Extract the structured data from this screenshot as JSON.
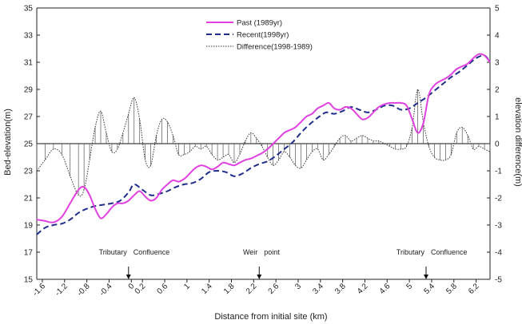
{
  "chart_data": {
    "type": "line",
    "title": "",
    "xlabel": "Distance from initial site (km)",
    "ylabel": "Bed-elevation(m)",
    "y2label": "elevation difference(m)",
    "xlim": [
      -1.7,
      6.45
    ],
    "ylim": [
      15,
      35
    ],
    "y2lim": [
      -5,
      5
    ],
    "x_ticks": [
      -1.6,
      -1.2,
      -0.8,
      -0.4,
      0,
      0.2,
      0.6,
      1,
      1.4,
      1.8,
      2.2,
      2.6,
      3,
      3.4,
      3.8,
      4.2,
      4.6,
      5,
      5.4,
      5.8,
      6.2
    ],
    "x_tick_labels": [
      "-1.6",
      "-1.2",
      "-0.8",
      "-0.4",
      "0",
      "0.2",
      "0.6",
      "1",
      "1.4",
      "1.8",
      "2.2",
      "2.6",
      "3",
      "3.4",
      "3.8",
      "4.2",
      "4.6",
      "5",
      "5.4",
      "5.8",
      "6.2"
    ],
    "y_ticks": [
      15,
      17,
      19,
      21,
      23,
      25,
      27,
      29,
      31,
      33,
      35
    ],
    "y2_ticks": [
      -5,
      -4,
      -3,
      -2,
      -1,
      0,
      1,
      2,
      3,
      4,
      5
    ],
    "grid": false,
    "legend_position": "top-center",
    "series": [
      {
        "name": "Past (1989yr)",
        "axis": "left",
        "color": "#e040e0",
        "style": "solid",
        "x": [
          -1.7,
          -1.55,
          -1.4,
          -1.25,
          -1.1,
          -0.95,
          -0.85,
          -0.75,
          -0.65,
          -0.55,
          -0.45,
          -0.35,
          -0.25,
          -0.15,
          -0.05,
          0.05,
          0.15,
          0.25,
          0.35,
          0.45,
          0.55,
          0.65,
          0.75,
          0.85,
          0.95,
          1.05,
          1.15,
          1.25,
          1.35,
          1.45,
          1.55,
          1.65,
          1.75,
          1.85,
          1.95,
          2.05,
          2.15,
          2.25,
          2.35,
          2.45,
          2.55,
          2.65,
          2.75,
          2.85,
          2.95,
          3.05,
          3.15,
          3.25,
          3.35,
          3.45,
          3.55,
          3.65,
          3.75,
          3.85,
          3.95,
          4.05,
          4.15,
          4.25,
          4.35,
          4.45,
          4.55,
          4.65,
          4.75,
          4.85,
          4.95,
          5.05,
          5.15,
          5.25,
          5.35,
          5.45,
          5.55,
          5.65,
          5.75,
          5.85,
          5.95,
          6.05,
          6.15,
          6.25,
          6.35,
          6.45
        ],
        "values": [
          19.4,
          19.3,
          19.2,
          19.6,
          20.6,
          21.6,
          21.8,
          21.2,
          20.2,
          19.5,
          19.8,
          20.3,
          20.6,
          20.6,
          20.8,
          21.2,
          21.5,
          21.1,
          20.8,
          21.0,
          21.6,
          22.0,
          22.3,
          22.2,
          22.4,
          22.8,
          23.2,
          23.4,
          23.3,
          23.1,
          23.3,
          23.6,
          23.5,
          23.4,
          23.6,
          23.8,
          23.9,
          24.1,
          24.3,
          24.6,
          25.0,
          25.4,
          25.8,
          26.0,
          26.2,
          26.6,
          27.0,
          27.2,
          27.6,
          27.8,
          28.0,
          27.6,
          27.5,
          27.7,
          27.6,
          27.2,
          26.8,
          26.9,
          27.3,
          27.7,
          27.9,
          28.0,
          28.0,
          28.0,
          27.8,
          26.8,
          25.8,
          26.5,
          28.6,
          29.3,
          29.6,
          29.8,
          30.1,
          30.5,
          30.7,
          30.9,
          31.3,
          31.6,
          31.5,
          31.0
        ]
      },
      {
        "name": "Recent(1998yr)",
        "axis": "left",
        "color": "#1f2d8a",
        "style": "dashed",
        "x": [
          -1.7,
          -1.55,
          -1.4,
          -1.25,
          -1.1,
          -0.95,
          -0.8,
          -0.65,
          -0.5,
          -0.35,
          -0.2,
          -0.05,
          0.05,
          0.2,
          0.35,
          0.5,
          0.65,
          0.8,
          0.95,
          1.1,
          1.25,
          1.4,
          1.55,
          1.7,
          1.85,
          2.0,
          2.15,
          2.3,
          2.45,
          2.6,
          2.75,
          2.9,
          3.05,
          3.2,
          3.35,
          3.5,
          3.65,
          3.8,
          3.95,
          4.1,
          4.25,
          4.4,
          4.55,
          4.7,
          4.85,
          5.0,
          5.15,
          5.3,
          5.45,
          5.6,
          5.75,
          5.9,
          6.05,
          6.2,
          6.35,
          6.45
        ],
        "values": [
          18.3,
          18.8,
          19.0,
          19.1,
          19.4,
          19.9,
          20.2,
          20.4,
          20.5,
          20.6,
          20.8,
          21.4,
          22.0,
          21.6,
          21.2,
          21.3,
          21.5,
          21.8,
          22.0,
          22.1,
          22.4,
          22.9,
          23.0,
          22.9,
          22.6,
          22.8,
          23.2,
          23.5,
          23.7,
          24.1,
          24.6,
          25.1,
          25.8,
          26.4,
          26.9,
          27.3,
          27.2,
          27.4,
          27.7,
          27.5,
          27.3,
          27.5,
          27.8,
          27.8,
          27.5,
          27.6,
          28.0,
          28.4,
          28.9,
          29.4,
          29.9,
          30.3,
          30.8,
          31.3,
          31.5,
          31.0
        ]
      },
      {
        "name": "Difference(1998-1989)",
        "axis": "right",
        "color": "#333333",
        "style": "dotted",
        "x": [
          -1.7,
          -1.55,
          -1.4,
          -1.25,
          -1.1,
          -0.95,
          -0.85,
          -0.75,
          -0.65,
          -0.55,
          -0.45,
          -0.35,
          -0.25,
          -0.15,
          -0.05,
          0.05,
          0.15,
          0.25,
          0.35,
          0.45,
          0.55,
          0.65,
          0.75,
          0.85,
          0.95,
          1.05,
          1.15,
          1.25,
          1.35,
          1.45,
          1.55,
          1.65,
          1.75,
          1.85,
          1.95,
          2.05,
          2.15,
          2.25,
          2.35,
          2.45,
          2.55,
          2.65,
          2.75,
          2.85,
          2.95,
          3.05,
          3.15,
          3.25,
          3.35,
          3.45,
          3.55,
          3.65,
          3.75,
          3.85,
          3.95,
          4.05,
          4.15,
          4.25,
          4.35,
          4.45,
          4.55,
          4.65,
          4.75,
          4.85,
          4.95,
          5.05,
          5.15,
          5.25,
          5.35,
          5.45,
          5.55,
          5.65,
          5.75,
          5.85,
          5.95,
          6.05,
          6.15,
          6.25,
          6.35,
          6.45
        ],
        "values": [
          -1.0,
          -0.6,
          -0.2,
          -0.4,
          -1.2,
          -1.9,
          -1.7,
          -0.6,
          0.6,
          1.2,
          0.4,
          -0.3,
          -0.2,
          0.4,
          1.1,
          1.7,
          0.9,
          -0.6,
          -0.8,
          0.3,
          0.9,
          0.8,
          0.3,
          -0.4,
          -0.4,
          -0.3,
          -0.1,
          -0.2,
          -0.1,
          -0.4,
          -0.6,
          -0.5,
          -0.4,
          -0.7,
          -0.4,
          0.1,
          0.4,
          0.2,
          -0.1,
          -0.5,
          -0.8,
          -0.6,
          -0.3,
          -0.5,
          -0.8,
          -0.9,
          -0.6,
          -0.3,
          -0.2,
          -0.6,
          -0.4,
          -0.1,
          0.2,
          0.3,
          0.1,
          0.2,
          0.3,
          0.2,
          0.1,
          0.1,
          0.0,
          -0.1,
          -0.2,
          -0.2,
          -0.1,
          0.6,
          2.0,
          0.8,
          -0.1,
          -0.5,
          -0.6,
          -0.6,
          -0.4,
          0.4,
          0.6,
          0.3,
          -0.2,
          -0.1,
          -0.2,
          -0.3
        ]
      }
    ],
    "annotations": [
      {
        "text_left": "Tributary",
        "text_right": "Confluence",
        "x": -0.05
      },
      {
        "text_left": "Weir",
        "text_right": "point",
        "x": 2.3
      },
      {
        "text_left": "Tributary",
        "text_right": "Confluence",
        "x": 5.3
      }
    ]
  }
}
